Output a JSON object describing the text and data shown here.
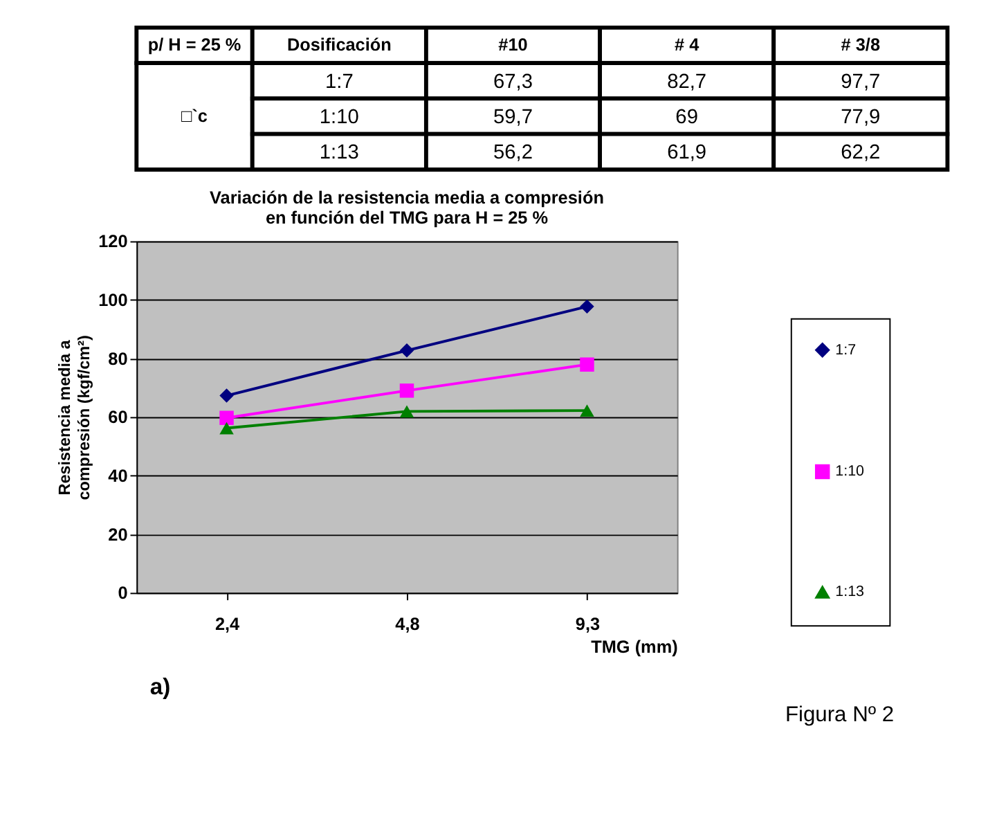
{
  "chart_data": [
    {
      "type": "other",
      "cell_labels": [
        [
          "p/ H = 25 %",
          "Dosificación",
          "#10",
          "# 4",
          "# 3/8"
        ],
        [
          "□`c",
          "1:7",
          "67,3",
          "82,7",
          "97,7"
        ],
        [
          null,
          "1:10",
          "59,7",
          "69",
          "77,9"
        ],
        [
          null,
          "1:13",
          "56,2",
          "61,9",
          "62,2"
        ]
      ]
    },
    {
      "type": "line",
      "title": "Variación de la resistencia media a compresión en función del TMG para H = 25 %",
      "xlabel": "TMG (mm)",
      "ylabel": "Resistencia media a compresión (kgf/cm²)",
      "categories": [
        "2,4",
        "4,8",
        "9,3"
      ],
      "series": [
        {
          "name": "1:7",
          "color": "#000080",
          "marker": "diamond",
          "values": [
            67.3,
            82.7,
            97.7
          ]
        },
        {
          "name": "1:10",
          "color": "#ff00ff",
          "marker": "square",
          "values": [
            59.7,
            69,
            77.9
          ]
        },
        {
          "name": "1:13",
          "color": "#008000",
          "marker": "triangle",
          "values": [
            56.2,
            61.9,
            62.2
          ]
        }
      ],
      "ylim": [
        0,
        120
      ],
      "yticks": [
        0,
        20,
        40,
        60,
        80,
        100,
        120
      ],
      "grid": "y",
      "legend": "right",
      "line_style": "solid",
      "annotations": [
        "a)",
        "Figura Nº 2"
      ]
    }
  ]
}
